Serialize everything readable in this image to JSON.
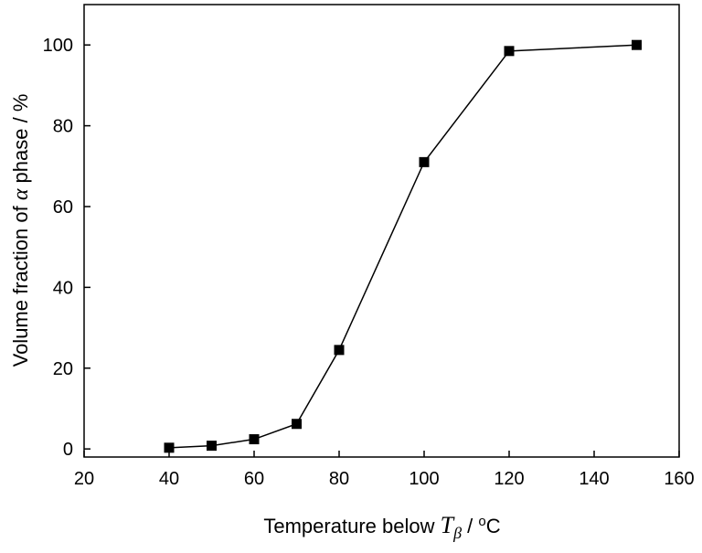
{
  "chart_data": {
    "type": "line",
    "xlabel": {
      "prefix": "Temperature below ",
      "symbol": "T",
      "subscript": "β",
      "suffix": " / ",
      "degree": "o",
      "unit": "C"
    },
    "ylabel": {
      "prefix": "Volume fraction of ",
      "symbol": "α",
      "suffix": " phase / %"
    },
    "xlim": [
      20,
      160
    ],
    "ylim": [
      -2,
      110
    ],
    "xticks": [
      20,
      40,
      60,
      80,
      100,
      120,
      140,
      160
    ],
    "yticks": [
      0,
      20,
      40,
      60,
      80,
      100
    ],
    "grid": false,
    "legend": "none",
    "marker": "square",
    "series": [
      {
        "x": [
          40,
          50,
          60,
          70,
          80,
          100,
          120,
          150
        ],
        "y": [
          0.3,
          0.8,
          2.4,
          6.2,
          24.5,
          71.0,
          98.5,
          100.0
        ],
        "color": "#000000"
      }
    ]
  }
}
